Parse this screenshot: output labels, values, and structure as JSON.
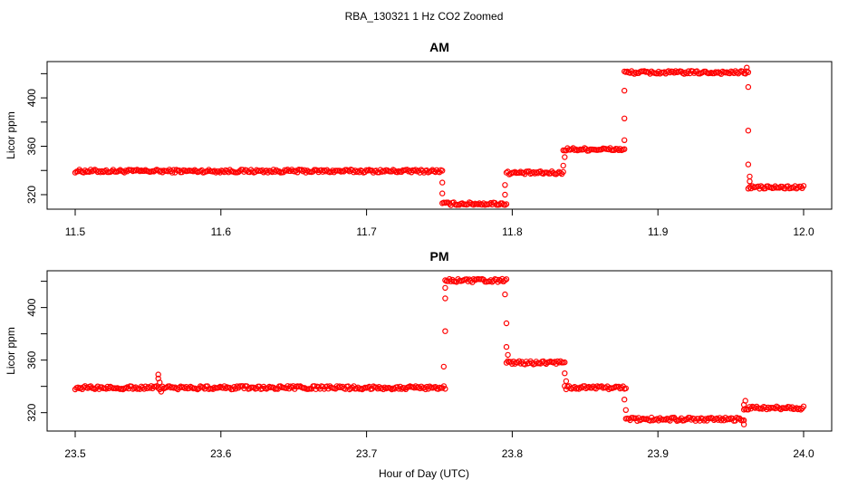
{
  "title": "RBA_130321  1 Hz CO2 Zoomed",
  "xlabel": "Hour of Day (UTC)",
  "colors": {
    "points": "#ff0000",
    "axis": "#000000",
    "background": "#ffffff"
  },
  "chart_data": [
    {
      "type": "scatter",
      "title": "AM",
      "ylabel": "Licor ppm",
      "xlim": [
        11.5,
        12.0
      ],
      "ylim": [
        308,
        430
      ],
      "xticks": [
        "11.5",
        "11.6",
        "11.7",
        "11.8",
        "11.9",
        "12.0"
      ],
      "yticks": [
        "320",
        "360",
        "400"
      ],
      "grid": false,
      "series": [
        {
          "segments": [
            {
              "x0": 11.5,
              "x1": 11.752,
              "y": 339.5
            },
            {
              "x0": 11.752,
              "x1": 11.796,
              "y": 312.5
            },
            {
              "x0": 11.796,
              "x1": 11.835,
              "y": 338.0
            },
            {
              "x0": 11.835,
              "x1": 11.877,
              "y": 357.5
            },
            {
              "x0": 11.877,
              "x1": 11.962,
              "y": 421.0
            },
            {
              "x0": 11.962,
              "x1": 12.0,
              "y": 326.0
            }
          ],
          "transition_points": [
            {
              "x": 11.752,
              "y": 330
            },
            {
              "x": 11.752,
              "y": 321
            },
            {
              "x": 11.795,
              "y": 320
            },
            {
              "x": 11.795,
              "y": 328
            },
            {
              "x": 11.835,
              "y": 344
            },
            {
              "x": 11.836,
              "y": 351
            },
            {
              "x": 11.877,
              "y": 365
            },
            {
              "x": 11.877,
              "y": 383
            },
            {
              "x": 11.877,
              "y": 406
            },
            {
              "x": 11.961,
              "y": 425
            },
            {
              "x": 11.962,
              "y": 409
            },
            {
              "x": 11.962,
              "y": 373
            },
            {
              "x": 11.962,
              "y": 345
            },
            {
              "x": 11.963,
              "y": 335
            },
            {
              "x": 11.963,
              "y": 331
            }
          ]
        }
      ]
    },
    {
      "type": "scatter",
      "title": "PM",
      "ylabel": "Licor ppm",
      "xlim": [
        23.5,
        24.0
      ],
      "ylim": [
        306,
        428
      ],
      "xticks": [
        "23.5",
        "23.6",
        "23.7",
        "23.8",
        "23.9",
        "24.0"
      ],
      "yticks": [
        "320",
        "360",
        "400"
      ],
      "grid": false,
      "series": [
        {
          "segments": [
            {
              "x0": 23.5,
              "x1": 23.754,
              "y": 339.0
            },
            {
              "x0": 23.754,
              "x1": 23.796,
              "y": 420.5
            },
            {
              "x0": 23.796,
              "x1": 23.836,
              "y": 358.0
            },
            {
              "x0": 23.836,
              "x1": 23.878,
              "y": 339.0
            },
            {
              "x0": 23.878,
              "x1": 23.959,
              "y": 315.0
            },
            {
              "x0": 23.959,
              "x1": 24.0,
              "y": 323.5
            }
          ],
          "transition_points": [
            {
              "x": 23.557,
              "y": 349
            },
            {
              "x": 23.557,
              "y": 346
            },
            {
              "x": 23.558,
              "y": 343
            },
            {
              "x": 23.559,
              "y": 336
            },
            {
              "x": 23.753,
              "y": 355
            },
            {
              "x": 23.754,
              "y": 382
            },
            {
              "x": 23.754,
              "y": 407
            },
            {
              "x": 23.754,
              "y": 415
            },
            {
              "x": 23.795,
              "y": 410
            },
            {
              "x": 23.796,
              "y": 388
            },
            {
              "x": 23.796,
              "y": 370
            },
            {
              "x": 23.797,
              "y": 364
            },
            {
              "x": 23.836,
              "y": 350
            },
            {
              "x": 23.837,
              "y": 344
            },
            {
              "x": 23.877,
              "y": 330
            },
            {
              "x": 23.878,
              "y": 322
            },
            {
              "x": 23.959,
              "y": 311
            },
            {
              "x": 23.959,
              "y": 326
            },
            {
              "x": 23.96,
              "y": 329
            }
          ]
        }
      ]
    }
  ]
}
